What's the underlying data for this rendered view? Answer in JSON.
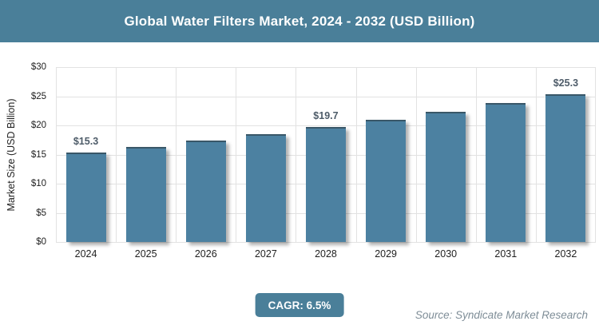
{
  "banner": {
    "title": "Global Water Filters Market, 2024 - 2032 (USD Billion)"
  },
  "footer": {
    "cagr_label": "CAGR: 6.5%",
    "source": "Source: Syndicate Market Research"
  },
  "colors": {
    "banner_bg": "#4a7f99",
    "bar_fill": "#4c81a1",
    "badge_bg": "#4a7f99",
    "grid": "#e2e2e2",
    "axis_text": "#222222",
    "value_label_text": "#4e5c69",
    "source_text": "#7e8d97"
  },
  "chart_data": {
    "type": "bar",
    "title": "Global Water Filters Market, 2024 - 2032 (USD Billion)",
    "categories": [
      "2024",
      "2025",
      "2026",
      "2027",
      "2028",
      "2029",
      "2030",
      "2031",
      "2032"
    ],
    "values": [
      15.3,
      16.3,
      17.4,
      18.5,
      19.7,
      21.0,
      22.3,
      23.8,
      25.3
    ],
    "point_labels": [
      "$15.3",
      "",
      "",
      "",
      "$19.7",
      "",
      "",
      "",
      "$25.3"
    ],
    "xlabel": "",
    "ylabel": "Market Size (USD Billion)",
    "ylim": [
      0,
      30
    ],
    "ytick_step": 5,
    "ytick_labels": [
      "$0",
      "$5",
      "$10",
      "$15",
      "$20",
      "$25",
      "$30"
    ],
    "grid": true,
    "legend_position": "none"
  }
}
